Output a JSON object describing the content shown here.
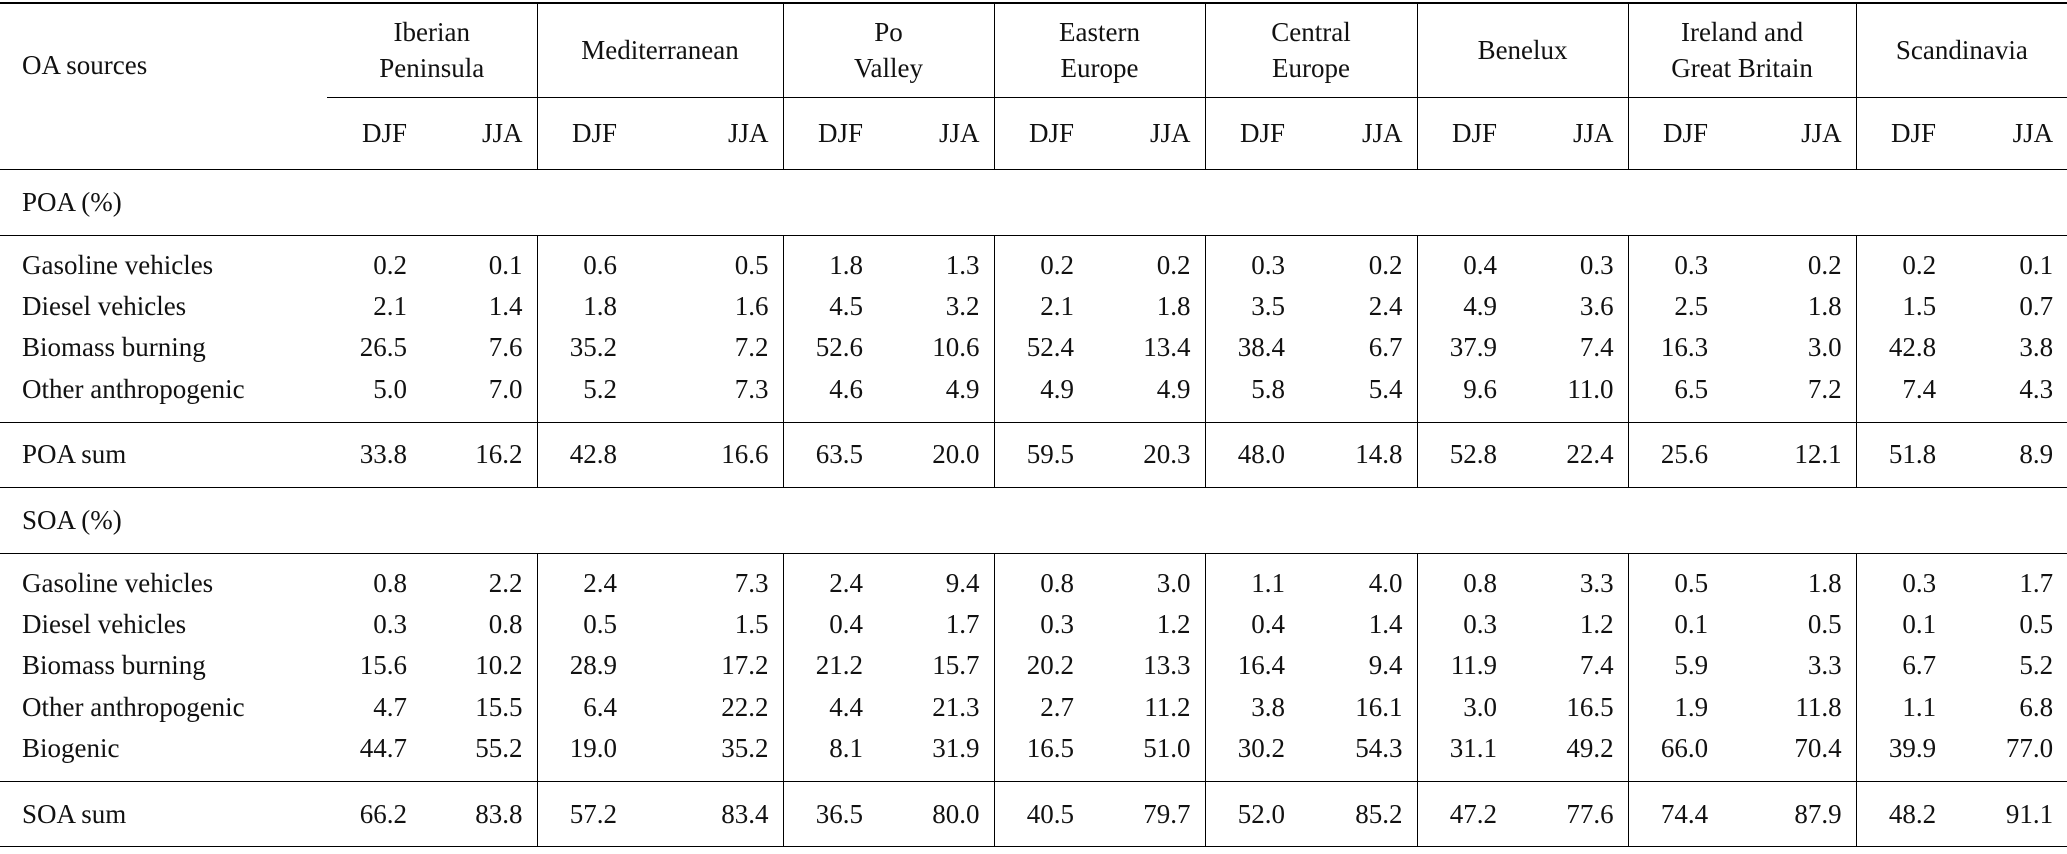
{
  "header": {
    "label": "OA sources",
    "regions": [
      {
        "name": "Iberian\nPeninsula",
        "seasons": [
          "DJF",
          "JJA"
        ]
      },
      {
        "name": "Mediterranean",
        "seasons": [
          "DJF",
          "JJA"
        ]
      },
      {
        "name": "Po\nValley",
        "seasons": [
          "DJF",
          "JJA"
        ]
      },
      {
        "name": "Eastern\nEurope",
        "seasons": [
          "DJF",
          "JJA"
        ]
      },
      {
        "name": "Central\nEurope",
        "seasons": [
          "DJF",
          "JJA"
        ]
      },
      {
        "name": "Benelux",
        "seasons": [
          "DJF",
          "JJA"
        ]
      },
      {
        "name": "Ireland and\nGreat Britain",
        "seasons": [
          "DJF",
          "JJA"
        ]
      },
      {
        "name": "Scandinavia",
        "seasons": [
          "DJF",
          "JJA"
        ]
      }
    ]
  },
  "sections": [
    {
      "title": "POA (%)",
      "rows": [
        {
          "label": "Gasoline vehicles",
          "values": [
            "0.2",
            "0.1",
            "0.6",
            "0.5",
            "1.8",
            "1.3",
            "0.2",
            "0.2",
            "0.3",
            "0.2",
            "0.4",
            "0.3",
            "0.3",
            "0.2",
            "0.2",
            "0.1"
          ]
        },
        {
          "label": "Diesel vehicles",
          "values": [
            "2.1",
            "1.4",
            "1.8",
            "1.6",
            "4.5",
            "3.2",
            "2.1",
            "1.8",
            "3.5",
            "2.4",
            "4.9",
            "3.6",
            "2.5",
            "1.8",
            "1.5",
            "0.7"
          ]
        },
        {
          "label": "Biomass burning",
          "values": [
            "26.5",
            "7.6",
            "35.2",
            "7.2",
            "52.6",
            "10.6",
            "52.4",
            "13.4",
            "38.4",
            "6.7",
            "37.9",
            "7.4",
            "16.3",
            "3.0",
            "42.8",
            "3.8"
          ]
        },
        {
          "label": "Other anthropogenic",
          "values": [
            "5.0",
            "7.0",
            "5.2",
            "7.3",
            "4.6",
            "4.9",
            "4.9",
            "4.9",
            "5.8",
            "5.4",
            "9.6",
            "11.0",
            "6.5",
            "7.2",
            "7.4",
            "4.3"
          ]
        }
      ],
      "sum": {
        "label": "POA sum",
        "values": [
          "33.8",
          "16.2",
          "42.8",
          "16.6",
          "63.5",
          "20.0",
          "59.5",
          "20.3",
          "48.0",
          "14.8",
          "52.8",
          "22.4",
          "25.6",
          "12.1",
          "51.8",
          "8.9"
        ]
      }
    },
    {
      "title": "SOA (%)",
      "rows": [
        {
          "label": "Gasoline vehicles",
          "values": [
            "0.8",
            "2.2",
            "2.4",
            "7.3",
            "2.4",
            "9.4",
            "0.8",
            "3.0",
            "1.1",
            "4.0",
            "0.8",
            "3.3",
            "0.5",
            "1.8",
            "0.3",
            "1.7"
          ]
        },
        {
          "label": "Diesel vehicles",
          "values": [
            "0.3",
            "0.8",
            "0.5",
            "1.5",
            "0.4",
            "1.7",
            "0.3",
            "1.2",
            "0.4",
            "1.4",
            "0.3",
            "1.2",
            "0.1",
            "0.5",
            "0.1",
            "0.5"
          ]
        },
        {
          "label": "Biomass burning",
          "values": [
            "15.6",
            "10.2",
            "28.9",
            "17.2",
            "21.2",
            "15.7",
            "20.2",
            "13.3",
            "16.4",
            "9.4",
            "11.9",
            "7.4",
            "5.9",
            "3.3",
            "6.7",
            "5.2"
          ]
        },
        {
          "label": "Other anthropogenic",
          "values": [
            "4.7",
            "15.5",
            "6.4",
            "22.2",
            "4.4",
            "21.3",
            "2.7",
            "11.2",
            "3.8",
            "16.1",
            "3.0",
            "16.5",
            "1.9",
            "11.8",
            "1.1",
            "6.8"
          ]
        },
        {
          "label": "Biogenic",
          "values": [
            "44.7",
            "55.2",
            "19.0",
            "35.2",
            "8.1",
            "31.9",
            "16.5",
            "51.0",
            "30.2",
            "54.3",
            "31.1",
            "49.2",
            "66.0",
            "70.4",
            "39.9",
            "77.0"
          ]
        }
      ],
      "sum": {
        "label": "SOA sum",
        "values": [
          "66.2",
          "83.8",
          "57.2",
          "83.4",
          "36.5",
          "80.0",
          "40.5",
          "79.7",
          "52.0",
          "85.2",
          "47.2",
          "77.6",
          "74.4",
          "87.9",
          "48.2",
          "91.1"
        ]
      }
    }
  ]
}
